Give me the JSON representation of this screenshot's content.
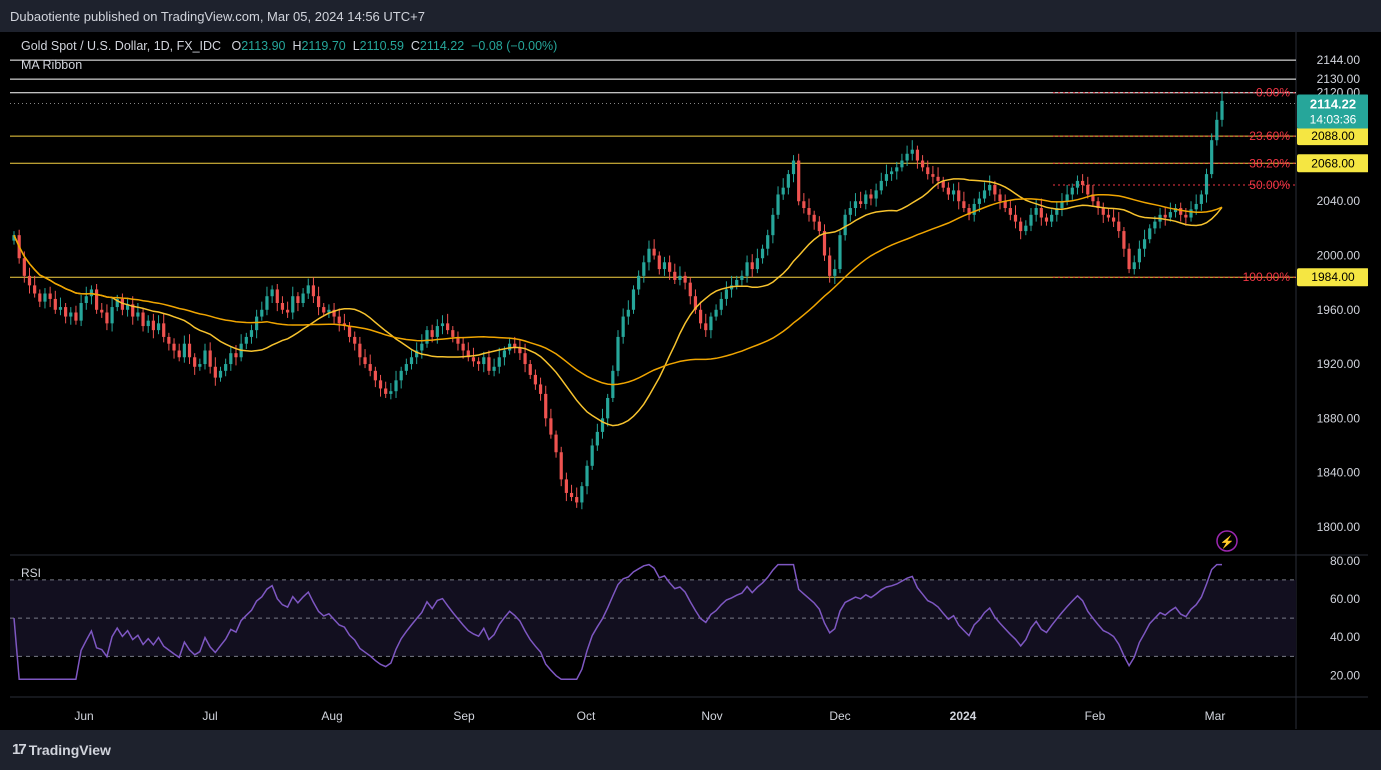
{
  "header": {
    "publisher": "Dubaotiente published on TradingView.com, Mar 05, 2024 14:56 UTC+7"
  },
  "legend": {
    "symbol": "Gold Spot / U.S. Dollar, 1D, FX_IDC",
    "o_label": "O",
    "o": "2113.90",
    "h_label": "H",
    "h": "2119.70",
    "l_label": "L",
    "l": "2110.59",
    "c_label": "C",
    "c": "2114.22",
    "change": "−0.08 (−0.00%)",
    "indicator": "MA Ribbon"
  },
  "rsi_label": "RSI",
  "footer": {
    "brand": "TradingView"
  },
  "colors": {
    "up": "#26a69a",
    "down": "#ef5350",
    "ma_fast": "#f7c32e",
    "ma_slow": "#f0a500",
    "rsi": "#7e57c2",
    "fib": "#f23645",
    "level": "#f5d142"
  },
  "chart_data": {
    "type": "candlestick",
    "price_axis": {
      "ylim": [
        1780,
        2150
      ],
      "ticks": [
        "2144.00",
        "2130.00",
        "2120.00",
        "2040.00",
        "2000.00",
        "1960.00",
        "1920.00",
        "1880.00",
        "1840.00",
        "1800.00"
      ],
      "tick_values": [
        2144,
        2130,
        2120,
        2040,
        2000,
        1960,
        1920,
        1880,
        1840,
        1800
      ]
    },
    "x_axis": {
      "labels": [
        "Jun",
        "Jul",
        "Aug",
        "Sep",
        "Oct",
        "Nov",
        "Dec",
        "2024",
        "Feb",
        "Mar"
      ]
    },
    "last_price": {
      "value": "2114.22",
      "countdown": "14:03:36"
    },
    "horizontal_levels": [
      {
        "value": 2144,
        "color": "#ffffff"
      },
      {
        "value": 2130,
        "color": "#ffffff"
      },
      {
        "value": 2120,
        "color": "#ffffff"
      },
      {
        "value": 2088,
        "color": "#f5d142",
        "tag": "2088.00"
      },
      {
        "value": 2068,
        "color": "#f5d142",
        "tag": "2068.00"
      },
      {
        "value": 1984,
        "color": "#f5d142",
        "tag": "1984.00"
      }
    ],
    "fibonacci": [
      {
        "label": "0.00%",
        "value": 2120
      },
      {
        "label": "23.60%",
        "value": 2088
      },
      {
        "label": "38.20%",
        "value": 2068
      },
      {
        "label": "50.00%",
        "value": 2052
      },
      {
        "label": "100.00%",
        "value": 1984
      }
    ],
    "closes": [
      2015,
      1998,
      1985,
      1978,
      1972,
      1966,
      1972,
      1968,
      1960,
      1962,
      1955,
      1958,
      1952,
      1965,
      1970,
      1975,
      1960,
      1958,
      1950,
      1962,
      1968,
      1960,
      1964,
      1955,
      1958,
      1948,
      1952,
      1945,
      1950,
      1940,
      1935,
      1930,
      1925,
      1935,
      1925,
      1918,
      1920,
      1930,
      1918,
      1910,
      1915,
      1920,
      1928,
      1925,
      1935,
      1940,
      1945,
      1955,
      1960,
      1970,
      1975,
      1965,
      1960,
      1958,
      1970,
      1965,
      1972,
      1978,
      1970,
      1962,
      1958,
      1960,
      1955,
      1950,
      1948,
      1940,
      1935,
      1925,
      1920,
      1915,
      1908,
      1902,
      1898,
      1900,
      1908,
      1915,
      1920,
      1925,
      1930,
      1935,
      1945,
      1940,
      1948,
      1950,
      1945,
      1940,
      1935,
      1930,
      1925,
      1922,
      1920,
      1925,
      1915,
      1918,
      1925,
      1930,
      1935,
      1932,
      1928,
      1920,
      1912,
      1905,
      1898,
      1880,
      1868,
      1855,
      1835,
      1825,
      1822,
      1818,
      1830,
      1845,
      1860,
      1870,
      1880,
      1895,
      1915,
      1940,
      1955,
      1960,
      1975,
      1985,
      1995,
      2005,
      2000,
      1990,
      1995,
      1988,
      1982,
      1985,
      1980,
      1970,
      1960,
      1950,
      1945,
      1955,
      1960,
      1968,
      1975,
      1978,
      1982,
      1985,
      1995,
      1990,
      1998,
      2005,
      2015,
      2030,
      2045,
      2050,
      2060,
      2070,
      2040,
      2035,
      2030,
      2025,
      2018,
      2000,
      1985,
      1990,
      2015,
      2030,
      2035,
      2040,
      2038,
      2045,
      2042,
      2048,
      2055,
      2060,
      2062,
      2065,
      2070,
      2075,
      2078,
      2070,
      2065,
      2060,
      2058,
      2055,
      2050,
      2045,
      2048,
      2040,
      2035,
      2030,
      2038,
      2042,
      2048,
      2052,
      2045,
      2040,
      2035,
      2030,
      2025,
      2018,
      2022,
      2030,
      2035,
      2028,
      2025,
      2030,
      2035,
      2040,
      2045,
      2050,
      2055,
      2052,
      2045,
      2040,
      2035,
      2030,
      2028,
      2025,
      2018,
      2005,
      1990,
      1995,
      2005,
      2012,
      2020,
      2025,
      2030,
      2028,
      2032,
      2035,
      2030,
      2028,
      2034,
      2038,
      2045,
      2060,
      2085,
      2100,
      2114
    ]
  }
}
